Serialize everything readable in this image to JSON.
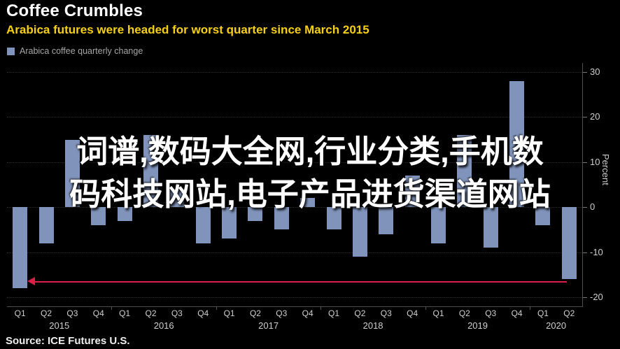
{
  "header": {
    "title": "Coffee Crumbles",
    "subtitle": "Arabica futures were headed for worst quarter since March 2015",
    "legend_label": "Arabica coffee quarterly change"
  },
  "watermark": {
    "line1": "词谱,数码大全网,行业分类,手机数",
    "line2": "码科技网站,电子产品进货渠道网站"
  },
  "source": "Source: ICE Futures U.S.",
  "colors": {
    "background": "#000000",
    "bar": "#8093ba",
    "subtitle": "#f6cf17",
    "arrow": "#dc1e47",
    "axis_text": "#cfcfcf",
    "grid": "#2e2e2e"
  },
  "chart_data": {
    "type": "bar",
    "title": "Coffee Crumbles",
    "subtitle": "Arabica futures were headed for worst quarter since March 2015",
    "legend": [
      "Arabica coffee quarterly change"
    ],
    "xlabel": "",
    "ylabel": "Percent",
    "ylim": [
      -22,
      32
    ],
    "yticks": [
      30,
      20,
      10,
      0,
      -10,
      -20
    ],
    "grid": "dotted-horizontal",
    "legend_position": "top-left",
    "categories": [
      "Q1 2015",
      "Q2 2015",
      "Q3 2015",
      "Q4 2015",
      "Q1 2016",
      "Q2 2016",
      "Q3 2016",
      "Q4 2016",
      "Q1 2017",
      "Q2 2017",
      "Q3 2017",
      "Q4 2017",
      "Q1 2018",
      "Q2 2018",
      "Q3 2018",
      "Q4 2018",
      "Q1 2019",
      "Q2 2019",
      "Q3 2019",
      "Q4 2019",
      "Q1 2020",
      "Q2 2020"
    ],
    "values": [
      -18,
      -8,
      15,
      -4,
      -3,
      16,
      4,
      -8,
      -7,
      -3,
      -5,
      2,
      -5,
      -11,
      -6,
      7,
      -8,
      16,
      -9,
      28,
      -4,
      -16
    ],
    "years": [
      {
        "label": "2015",
        "start": 0,
        "count": 4
      },
      {
        "label": "2016",
        "start": 4,
        "count": 4
      },
      {
        "label": "2017",
        "start": 8,
        "count": 4
      },
      {
        "label": "2018",
        "start": 12,
        "count": 4
      },
      {
        "label": "2019",
        "start": 16,
        "count": 4
      },
      {
        "label": "2020",
        "start": 20,
        "count": 2
      }
    ],
    "annotation": {
      "shape": "horizontal-arrow",
      "direction": "left",
      "y": -16.5,
      "points_to": "Q1 2015",
      "color": "#dc1e47"
    }
  }
}
